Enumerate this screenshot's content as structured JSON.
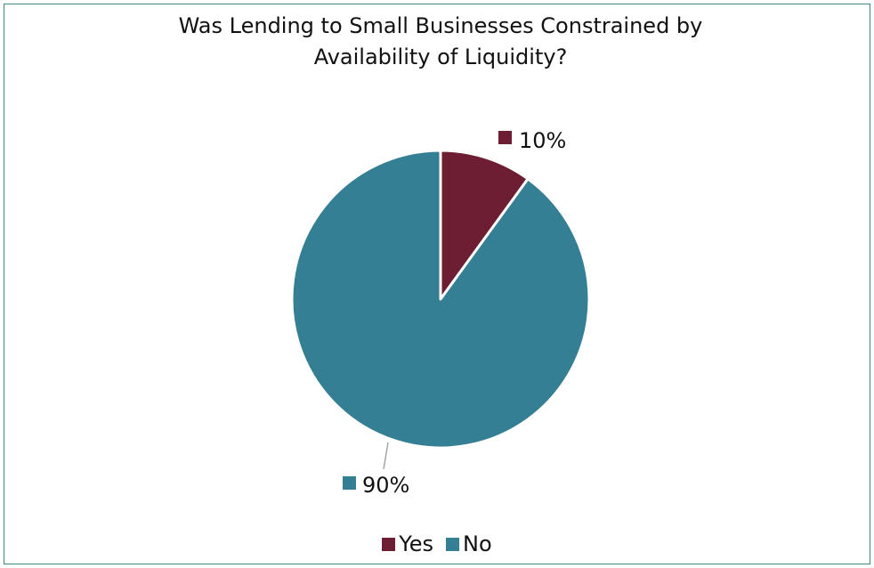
{
  "chart_data": {
    "type": "pie",
    "title_lines": [
      "Was Lending to Small Businesses Constrained by",
      "Availability of Liquidity?"
    ],
    "slices": [
      {
        "name": "Yes",
        "value": 10,
        "label": "10%",
        "color": "#6e1e32"
      },
      {
        "name": "No",
        "value": 90,
        "label": "90%",
        "color": "#347f93"
      }
    ],
    "legend": {
      "position": "bottom"
    }
  }
}
